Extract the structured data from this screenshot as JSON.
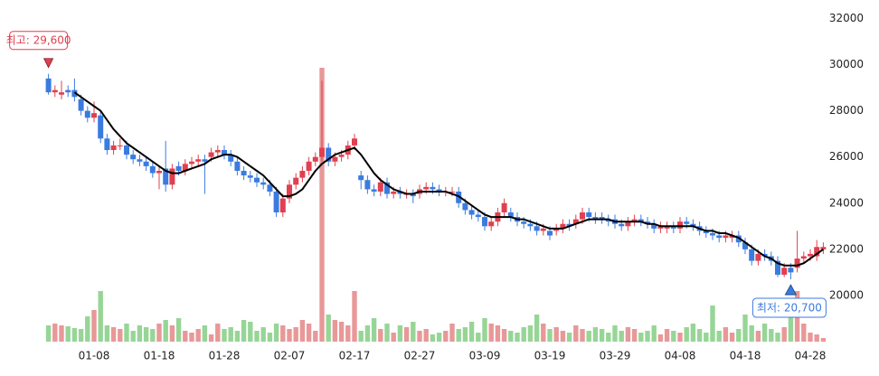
{
  "chart_data": {
    "type": "candlestick",
    "x": [
      "01-01",
      "01-02",
      "01-03",
      "01-04",
      "01-05",
      "01-06",
      "01-07",
      "01-08",
      "01-09",
      "01-10",
      "01-11",
      "01-12",
      "01-13",
      "01-14",
      "01-15",
      "01-16",
      "01-17",
      "01-18",
      "01-19",
      "01-20",
      "01-21",
      "01-22",
      "01-23",
      "01-24",
      "01-25",
      "01-26",
      "01-27",
      "01-28",
      "01-29",
      "01-30",
      "01-31",
      "02-01",
      "02-02",
      "02-03",
      "02-04",
      "02-05",
      "02-06",
      "02-07",
      "02-08",
      "02-09",
      "02-10",
      "02-11",
      "02-12",
      "02-13",
      "02-14",
      "02-15",
      "02-16",
      "02-17",
      "02-18",
      "02-19",
      "02-20",
      "02-21",
      "02-22",
      "02-23",
      "02-24",
      "02-25",
      "02-26",
      "02-27",
      "02-28",
      "03-01",
      "03-02",
      "03-03",
      "03-04",
      "03-05",
      "03-06",
      "03-07",
      "03-08",
      "03-09",
      "03-10",
      "03-11",
      "03-12",
      "03-13",
      "03-14",
      "03-15",
      "03-16",
      "03-17",
      "03-18",
      "03-19",
      "03-20",
      "03-21",
      "03-22",
      "03-23",
      "03-24",
      "03-25",
      "03-26",
      "03-27",
      "03-28",
      "03-29",
      "03-30",
      "03-31",
      "04-01",
      "04-02",
      "04-03",
      "04-04",
      "04-05",
      "04-06",
      "04-07",
      "04-08",
      "04-09",
      "04-10",
      "04-11",
      "04-12",
      "04-13",
      "04-14",
      "04-15",
      "04-16",
      "04-17",
      "04-18",
      "04-19",
      "04-20",
      "04-21",
      "04-22",
      "04-23",
      "04-24",
      "04-25",
      "04-26",
      "04-27",
      "04-28",
      "04-29",
      "04-30"
    ],
    "open": [
      29400,
      28800,
      28700,
      28900,
      28900,
      28500,
      28000,
      27700,
      27800,
      26800,
      26300,
      26500,
      26500,
      26100,
      25900,
      25800,
      25600,
      25300,
      25500,
      24800,
      25600,
      25400,
      25700,
      25800,
      25900,
      26000,
      26200,
      26300,
      26100,
      25800,
      25400,
      25200,
      25100,
      24900,
      24800,
      24500,
      23600,
      24200,
      24800,
      25100,
      25400,
      25800,
      26000,
      26400,
      25800,
      26000,
      26100,
      26500,
      25200,
      25000,
      24600,
      24500,
      24900,
      24400,
      24500,
      24400,
      24400,
      24400,
      24600,
      24700,
      24600,
      24500,
      24500,
      24500,
      24000,
      23700,
      23500,
      23400,
      23000,
      23200,
      23600,
      23600,
      23400,
      23200,
      23100,
      23000,
      22800,
      22800,
      22800,
      22900,
      23100,
      23100,
      23300,
      23600,
      23400,
      23400,
      23300,
      23300,
      23100,
      23000,
      23200,
      23300,
      23200,
      23100,
      22900,
      22900,
      23000,
      22900,
      23200,
      23100,
      23000,
      22800,
      22700,
      22600,
      22500,
      22500,
      22600,
      22300,
      22000,
      21500,
      21800,
      21700,
      21500,
      20900,
      21200,
      21200,
      21600,
      21700,
      21700,
      22000
    ],
    "high": [
      29600,
      29100,
      29300,
      29100,
      29400,
      28700,
      28200,
      28400,
      28000,
      27000,
      26700,
      26800,
      26700,
      26300,
      26100,
      26000,
      25800,
      25600,
      26700,
      25700,
      25800,
      25900,
      26000,
      26100,
      26100,
      26400,
      26500,
      26500,
      26300,
      26000,
      25600,
      25400,
      25300,
      25100,
      25000,
      24700,
      24400,
      25000,
      25300,
      25600,
      26000,
      26200,
      29300,
      26600,
      26200,
      26300,
      26700,
      27000,
      25400,
      25200,
      24800,
      25100,
      25100,
      24700,
      24700,
      24600,
      24600,
      24800,
      24900,
      24900,
      24800,
      24700,
      24700,
      24700,
      24200,
      23900,
      23700,
      23600,
      23400,
      23800,
      24200,
      23800,
      23600,
      23400,
      23300,
      23200,
      23100,
      23000,
      23100,
      23300,
      23300,
      23500,
      23800,
      23800,
      23600,
      23600,
      23500,
      23500,
      23300,
      23400,
      23500,
      23500,
      23400,
      23300,
      23200,
      23200,
      23200,
      23400,
      23400,
      23300,
      23200,
      23000,
      22900,
      22800,
      22800,
      22800,
      22800,
      22500,
      22200,
      22000,
      22000,
      21900,
      21700,
      21400,
      21400,
      22800,
      21900,
      22000,
      22400,
      22300
    ],
    "low": [
      28700,
      28600,
      28500,
      28600,
      28400,
      27800,
      27500,
      27500,
      26600,
      26100,
      26100,
      26300,
      25900,
      25700,
      25600,
      25400,
      25100,
      24600,
      24500,
      24600,
      25200,
      25200,
      25500,
      25600,
      24400,
      25800,
      26000,
      25900,
      25600,
      25200,
      25000,
      24900,
      24700,
      24600,
      24300,
      23400,
      23400,
      24000,
      24600,
      24900,
      25200,
      25600,
      25800,
      25600,
      25600,
      25800,
      25900,
      26300,
      24600,
      24400,
      24300,
      24300,
      24200,
      24200,
      24200,
      24200,
      24000,
      24200,
      24400,
      24400,
      24300,
      24300,
      24300,
      23800,
      23500,
      23300,
      23200,
      22800,
      22800,
      23000,
      23400,
      23200,
      23000,
      22900,
      22800,
      22600,
      22600,
      22400,
      22600,
      22700,
      22800,
      22900,
      23100,
      23200,
      23100,
      23100,
      23000,
      22900,
      22800,
      22800,
      23000,
      23000,
      22900,
      22700,
      22700,
      22700,
      22700,
      22700,
      22900,
      22800,
      22600,
      22500,
      22400,
      22300,
      22300,
      22300,
      22100,
      21800,
      21300,
      21300,
      21500,
      21300,
      20800,
      20800,
      20700,
      21000,
      21400,
      21500,
      21500,
      21800
    ],
    "close": [
      28800,
      28900,
      28800,
      28800,
      28600,
      28000,
      27700,
      27900,
      26800,
      26300,
      26500,
      26500,
      26100,
      25900,
      25800,
      25600,
      25300,
      25400,
      24800,
      25500,
      25400,
      25700,
      25800,
      25900,
      25800,
      26200,
      26300,
      26100,
      25800,
      25400,
      25200,
      25100,
      24900,
      24800,
      24500,
      23600,
      24200,
      24800,
      25100,
      25400,
      25800,
      26000,
      26400,
      25800,
      26000,
      26100,
      26500,
      26800,
      25000,
      24600,
      24500,
      24900,
      24400,
      24500,
      24400,
      24400,
      24300,
      24600,
      24700,
      24600,
      24500,
      24500,
      24500,
      24000,
      23700,
      23500,
      23400,
      23000,
      23200,
      23600,
      24000,
      23400,
      23200,
      23100,
      23000,
      22800,
      22900,
      22600,
      22900,
      23100,
      23000,
      23300,
      23600,
      23400,
      23300,
      23300,
      23200,
      23100,
      23000,
      23200,
      23300,
      23200,
      23100,
      22900,
      23000,
      23000,
      22900,
      23200,
      23100,
      23000,
      22800,
      22700,
      22600,
      22500,
      22600,
      22600,
      22300,
      22000,
      21500,
      21800,
      21700,
      21500,
      20900,
      21200,
      21000,
      21600,
      21700,
      21800,
      22100,
      22100
    ],
    "volume": [
      18,
      20,
      18,
      17,
      15,
      14,
      28,
      35,
      56,
      18,
      16,
      14,
      20,
      12,
      18,
      16,
      14,
      20,
      24,
      18,
      26,
      12,
      10,
      14,
      18,
      8,
      20,
      14,
      16,
      12,
      24,
      22,
      12,
      16,
      10,
      20,
      18,
      14,
      16,
      24,
      20,
      12,
      303,
      30,
      24,
      22,
      18,
      56,
      12,
      18,
      26,
      14,
      20,
      10,
      18,
      16,
      22,
      12,
      14,
      8,
      10,
      12,
      20,
      14,
      16,
      22,
      10,
      26,
      20,
      18,
      14,
      12,
      10,
      16,
      18,
      30,
      20,
      14,
      16,
      12,
      10,
      18,
      14,
      12,
      16,
      14,
      10,
      18,
      12,
      16,
      14,
      10,
      12,
      18,
      8,
      14,
      12,
      10,
      16,
      20,
      14,
      10,
      40,
      12,
      16,
      10,
      14,
      30,
      18,
      12,
      20,
      14,
      10,
      16,
      44,
      56,
      20,
      10,
      8,
      4
    ],
    "ma": [
      null,
      null,
      null,
      null,
      28800,
      28600,
      28400,
      28200,
      28000,
      27600,
      27200,
      26900,
      26600,
      26400,
      26200,
      26000,
      25800,
      25600,
      25400,
      25300,
      25300,
      25400,
      25500,
      25600,
      25700,
      25900,
      26000,
      26100,
      26100,
      26000,
      25800,
      25600,
      25400,
      25200,
      24900,
      24600,
      24300,
      24300,
      24400,
      24600,
      25000,
      25400,
      25700,
      25900,
      26100,
      26200,
      26300,
      26400,
      26100,
      25700,
      25300,
      25000,
      24800,
      24600,
      24500,
      24400,
      24400,
      24500,
      24500,
      24500,
      24500,
      24500,
      24400,
      24300,
      24100,
      23900,
      23700,
      23500,
      23400,
      23400,
      23400,
      23400,
      23300,
      23300,
      23200,
      23100,
      23000,
      22900,
      22900,
      22900,
      23000,
      23100,
      23200,
      23300,
      23300,
      23300,
      23300,
      23200,
      23200,
      23200,
      23200,
      23200,
      23100,
      23100,
      23000,
      23000,
      23000,
      23000,
      23000,
      23000,
      22900,
      22800,
      22800,
      22700,
      22700,
      22600,
      22500,
      22300,
      22100,
      21900,
      21700,
      21600,
      21400,
      21300,
      21300,
      21300,
      21400,
      21600,
      21800,
      22000
    ],
    "xticks": [
      "01-08",
      "01-18",
      "01-28",
      "02-07",
      "02-17",
      "02-27",
      "03-09",
      "03-19",
      "03-29",
      "04-08",
      "04-18",
      "04-28"
    ],
    "ylim": [
      18000,
      32800
    ],
    "yticks": [
      20000,
      22000,
      24000,
      26000,
      28000,
      30000,
      32000
    ],
    "max_label": "최고: 29,600",
    "min_label": "최저: 20,700",
    "up_color": "#e0404f",
    "down_color": "#3a7be0",
    "ma_color": "#000000",
    "volume_up_color": "#e89898",
    "volume_down_color": "#97d597"
  }
}
